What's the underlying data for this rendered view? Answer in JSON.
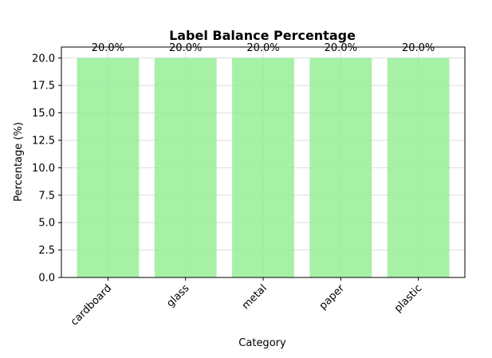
{
  "chart_data": {
    "type": "bar",
    "title": "Label Balance Percentage",
    "xlabel": "Category",
    "ylabel": "Percentage (%)",
    "categories": [
      "cardboard",
      "glass",
      "metal",
      "paper",
      "plastic"
    ],
    "values": [
      20.0,
      20.0,
      20.0,
      20.0,
      20.0
    ],
    "data_labels": [
      "20.0%",
      "20.0%",
      "20.0%",
      "20.0%",
      "20.0%"
    ],
    "ylim": [
      0,
      21
    ],
    "yticks": [
      0.0,
      2.5,
      5.0,
      7.5,
      10.0,
      12.5,
      15.0,
      17.5,
      20.0
    ],
    "ytick_labels": [
      "0.0",
      "2.5",
      "5.0",
      "7.5",
      "10.0",
      "12.5",
      "15.0",
      "17.5",
      "20.0"
    ],
    "grid": true,
    "colors": {
      "bar": "#90ee90",
      "grid": "#dddddd",
      "axis": "#000000"
    }
  }
}
